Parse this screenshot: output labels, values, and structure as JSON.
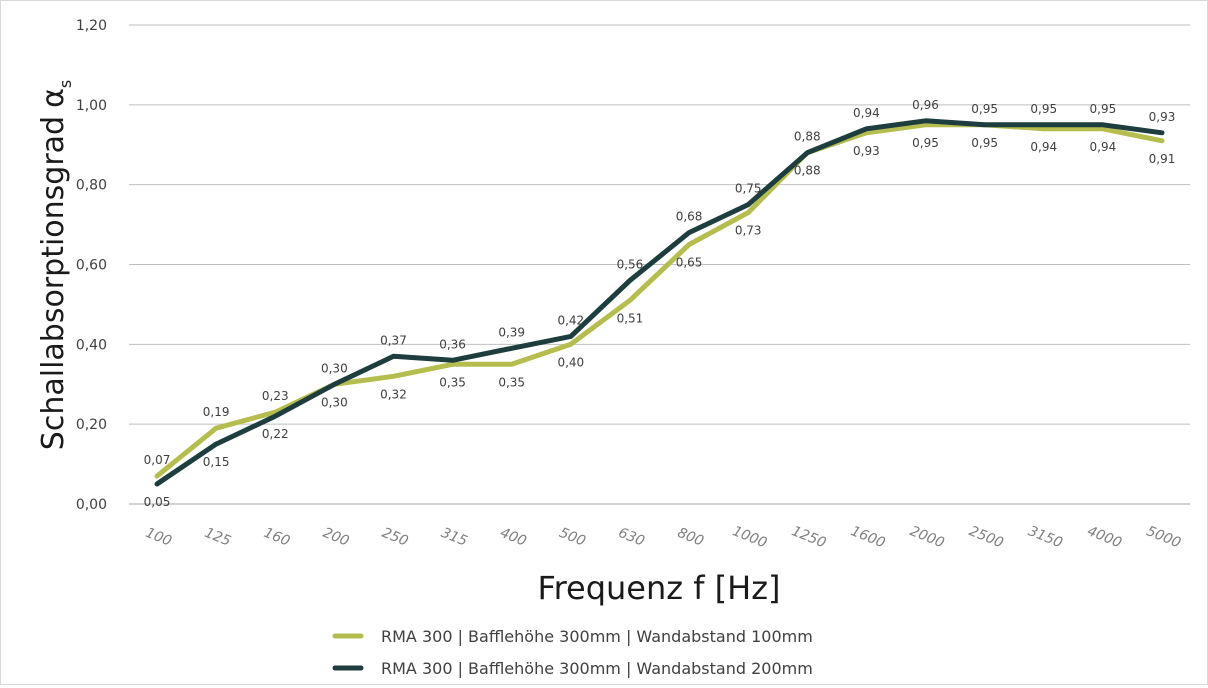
{
  "chart_data": {
    "type": "line",
    "categories": [
      "100",
      "125",
      "160",
      "200",
      "250",
      "315",
      "400",
      "500",
      "630",
      "800",
      "1000",
      "1250",
      "1600",
      "2000",
      "2500",
      "3150",
      "4000",
      "5000"
    ],
    "series": [
      {
        "name": "RMA 300 | Bafflehöhe 300mm | Wandabstand 100mm",
        "color": "#b5bd4f",
        "values": [
          0.07,
          0.19,
          0.23,
          0.3,
          0.32,
          0.35,
          0.35,
          0.4,
          0.51,
          0.65,
          0.73,
          0.88,
          0.93,
          0.95,
          0.95,
          0.94,
          0.94,
          0.91
        ],
        "labels": [
          "0,07",
          "0,19",
          "0,23",
          "0,30",
          "0,32",
          "0,35",
          "0,35",
          "0,40",
          "0,51",
          "0,65",
          "0,73",
          "0,88",
          "0,93",
          "0,95",
          "0,95",
          "0,94",
          "0,94",
          "0,91"
        ]
      },
      {
        "name": "RMA 300 | Bafflehöhe 300mm | Wandabstand 200mm",
        "color": "#1e3d3f",
        "values": [
          0.05,
          0.15,
          0.22,
          0.3,
          0.37,
          0.36,
          0.39,
          0.42,
          0.56,
          0.68,
          0.75,
          0.88,
          0.94,
          0.96,
          0.95,
          0.95,
          0.95,
          0.93
        ],
        "labels": [
          "0,05",
          "0,15",
          "0,22",
          "0,30",
          "0,37",
          "0,36",
          "0,39",
          "0,42",
          "0,56",
          "0,68",
          "0,75",
          "0,88",
          "0,94",
          "0,96",
          "0,95",
          "0,95",
          "0,95",
          "0,93"
        ]
      }
    ],
    "y_ticks": [
      "0,00",
      "0,20",
      "0,40",
      "0,60",
      "0,80",
      "1,00",
      "1,20"
    ],
    "ylim": [
      0,
      1.2
    ],
    "ylabel": "Schallabsorptionsgrad",
    "ylabel_symbol": "α",
    "ylabel_subscript": "s",
    "xlabel": "Frequenz f [Hz]",
    "grid": true,
    "legend_position": "bottom"
  }
}
